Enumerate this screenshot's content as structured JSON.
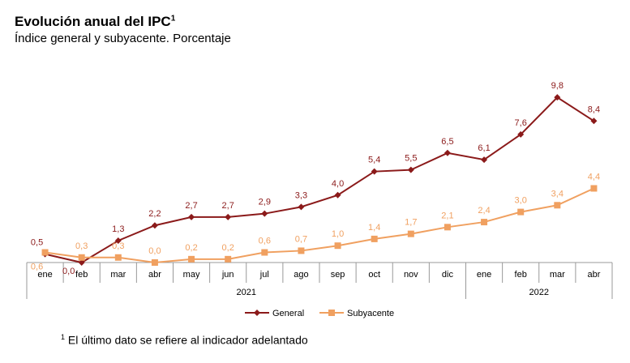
{
  "header": {
    "title": "Evolución anual del IPC",
    "title_sup": "1",
    "subtitle": "Índice general y subyacente. Porcentaje"
  },
  "chart_data": {
    "type": "line",
    "title": "Evolución anual del IPC",
    "subtitle": "Índice general y subyacente. Porcentaje",
    "categories": [
      "ene",
      "feb",
      "mar",
      "abr",
      "may",
      "jun",
      "jul",
      "ago",
      "sep",
      "oct",
      "nov",
      "dic",
      "ene",
      "feb",
      "mar",
      "abr"
    ],
    "year_groups": [
      {
        "label": "2021",
        "start": 0,
        "end": 11
      },
      {
        "label": "2022",
        "start": 12,
        "end": 15
      }
    ],
    "series": [
      {
        "name": "General",
        "color": "#8b1a1a",
        "marker": "diamond",
        "values": [
          0.5,
          0.0,
          1.3,
          2.2,
          2.7,
          2.7,
          2.9,
          3.3,
          4.0,
          5.4,
          5.5,
          6.5,
          6.1,
          7.6,
          9.8,
          8.4
        ],
        "labels": [
          "0,5",
          "0,0",
          "1,3",
          "2,2",
          "2,7",
          "2,7",
          "2,9",
          "3,3",
          "4,0",
          "5,4",
          "5,5",
          "6,5",
          "6,1",
          "7,6",
          "9,8",
          "8,4"
        ]
      },
      {
        "name": "Subyacente",
        "color": "#f0a060",
        "marker": "square",
        "values": [
          0.6,
          0.3,
          0.3,
          0.0,
          0.2,
          0.2,
          0.6,
          0.7,
          1.0,
          1.4,
          1.7,
          2.1,
          2.4,
          3.0,
          3.4,
          4.4
        ],
        "labels": [
          "0,6",
          "0,3",
          "0,3",
          "0,0",
          "0,2",
          "0,2",
          "0,6",
          "0,7",
          "1,0",
          "1,4",
          "1,7",
          "2,1",
          "2,4",
          "3,0",
          "3,4",
          "4,4"
        ]
      }
    ],
    "ylim": [
      0,
      11
    ],
    "grid": false,
    "legend_placement": "bottom-center"
  },
  "footnote": {
    "sup": "1",
    "text": "El último dato se refiere al indicador adelantado"
  }
}
